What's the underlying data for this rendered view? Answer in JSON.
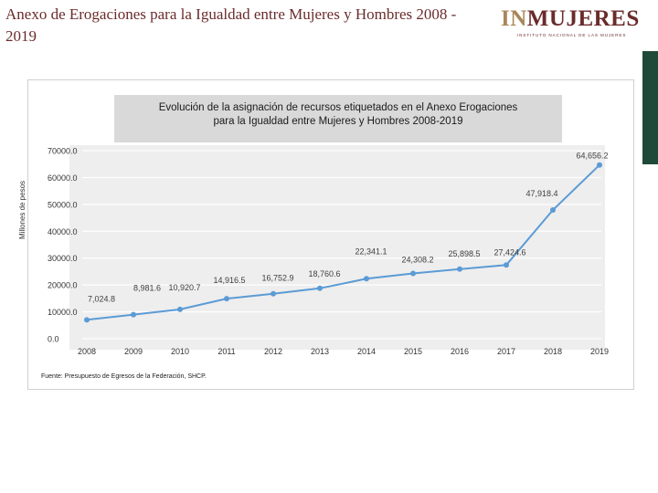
{
  "slide": {
    "title": "Anexo de Erogaciones para la Igualdad entre Mujeres y Hombres  2008 - 2019"
  },
  "logo": {
    "brand_prefix": "IN",
    "brand_rest": "MUJERES",
    "subtitle": "INSTITUTO NACIONAL DE LAS MUJERES"
  },
  "colors": {
    "title_maroon": "#6b2b2b",
    "logo_gold": "#a9865a",
    "series_blue": "#5b9bd5",
    "plot_bg": "#eeeeee",
    "deco_green": "#1f4a3a"
  },
  "chart_data": {
    "type": "line",
    "title_line1": "Evolución de la asignación de recursos etiquetados en el Anexo Erogaciones",
    "title_line2": "para la Igualdad entre Mujeres y Hombres 2008-2019",
    "ylabel": "Millones de pesos",
    "xlabel": "",
    "categories": [
      "2008",
      "2009",
      "2010",
      "2011",
      "2012",
      "2013",
      "2014",
      "2015",
      "2016",
      "2017",
      "2018",
      "2019"
    ],
    "values": [
      7024.8,
      8981.6,
      10920.7,
      14916.5,
      16752.9,
      18760.6,
      22341.1,
      24308.2,
      25898.5,
      27424.6,
      47918.4,
      64656.2
    ],
    "data_labels": [
      "7,024.8",
      "8,981.6",
      "10,920.7",
      "14,916.5",
      "16,752.9",
      "18,760.6",
      "22,341.1",
      "24,308.2",
      "25,898.5",
      "27,424.6",
      "47,918.4",
      "64,656.2"
    ],
    "yticks": [
      0,
      10000,
      20000,
      30000,
      40000,
      50000,
      60000,
      70000
    ],
    "ytick_labels": [
      "0.0",
      "10000.0",
      "20000.0",
      "30000.0",
      "40000.0",
      "50000.0",
      "60000.0",
      "70000.0"
    ],
    "ylim": [
      0,
      70000
    ],
    "grid": true,
    "legend": "none"
  },
  "source_note": "Fuente: Presupuesto de Egresos de la Federación, SHCP."
}
